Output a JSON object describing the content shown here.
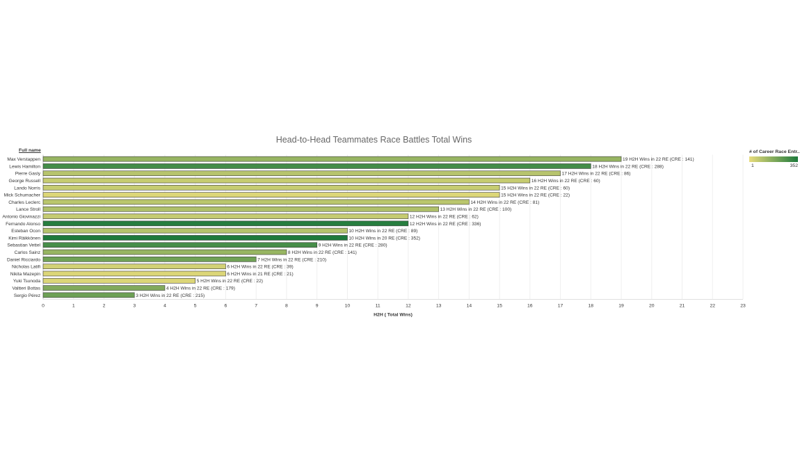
{
  "chart_data": {
    "type": "bar",
    "orientation": "horizontal",
    "title": "Head-to-Head Teammates Race Battles Total Wins",
    "row_header": "Full name",
    "xlabel": "H2H ( Total Wins)",
    "xlim": [
      0,
      23
    ],
    "xticks": [
      "0",
      "1",
      "2",
      "3",
      "4",
      "5",
      "6",
      "7",
      "8",
      "9",
      "10",
      "11",
      "12",
      "13",
      "14",
      "15",
      "16",
      "17",
      "18",
      "19",
      "20",
      "21",
      "22",
      "23"
    ],
    "color_legend": {
      "title": "# of Career Race Entr..",
      "min_label": "1",
      "max_label": "352",
      "min": 1,
      "max": 352,
      "min_color": "#e8dc7c",
      "max_color": "#1e7a3c"
    },
    "rows": [
      {
        "name": "Max Verstappen",
        "value": 19,
        "cre": 141,
        "label": "19 H2H Wins in 22 RE (CRE : 141)"
      },
      {
        "name": "Lewis Hamilton",
        "value": 18,
        "cre": 288,
        "label": "18 H2H Wins in 22 RE (CRE : 288)"
      },
      {
        "name": "Pierre Gasly",
        "value": 17,
        "cre": 86,
        "label": "17 H2H Wins in 22 RE (CRE : 86)"
      },
      {
        "name": "George Russell",
        "value": 16,
        "cre": 60,
        "label": "16 H2H Wins in 22 RE (CRE : 60)"
      },
      {
        "name": "Lando Norris",
        "value": 15,
        "cre": 60,
        "label": "15 H2H Wins in 22 RE (CRE : 60)"
      },
      {
        "name": "Mick Schumacher",
        "value": 15,
        "cre": 22,
        "label": "15 H2H Wins in 22 RE (CRE : 22)"
      },
      {
        "name": "Charles Leclerc",
        "value": 14,
        "cre": 81,
        "label": "14 H2H Wins in 22 RE (CRE : 81)"
      },
      {
        "name": "Lance Stroll",
        "value": 13,
        "cre": 100,
        "label": "13 H2H Wins in 22 RE (CRE : 100)"
      },
      {
        "name": "Antonio Giovinazzi",
        "value": 12,
        "cre": 62,
        "label": "12 H2H Wins in 22 RE (CRE : 62)"
      },
      {
        "name": "Fernando Alonso",
        "value": 12,
        "cre": 336,
        "label": "12 H2H Wins in 22 RE (CRE : 336)"
      },
      {
        "name": "Esteban Ocon",
        "value": 10,
        "cre": 89,
        "label": "10 H2H Wins in 22 RE (CRE : 89)"
      },
      {
        "name": "Kimi Räikkönen",
        "value": 10,
        "cre": 352,
        "label": "10 H2H Wins in 20 RE (CRE : 352)"
      },
      {
        "name": "Sebastian Vettel",
        "value": 9,
        "cre": 280,
        "label": "9 H2H Wins in 22 RE (CRE : 280)"
      },
      {
        "name": "Carlos Sainz",
        "value": 8,
        "cre": 141,
        "label": "8 H2H Wins in 22 RE (CRE : 141)"
      },
      {
        "name": "Daniel Ricciardo",
        "value": 7,
        "cre": 210,
        "label": "7 H2H Wins in 22 RE (CRE : 210)"
      },
      {
        "name": "Nicholas Latifi",
        "value": 6,
        "cre": 39,
        "label": "6 H2H Wins in 22 RE (CRE : 39)"
      },
      {
        "name": "Nikita Mazepin",
        "value": 6,
        "cre": 21,
        "label": "6 H2H Wins in 21 RE (CRE : 21)"
      },
      {
        "name": "Yuki Tsunoda",
        "value": 5,
        "cre": 22,
        "label": "5 H2H Wins in 22 RE (CRE : 22)"
      },
      {
        "name": "Valtteri Bottas",
        "value": 4,
        "cre": 179,
        "label": "4 H2H Wins in 22 RE (CRE : 179)"
      },
      {
        "name": "Sergio Pérez",
        "value": 3,
        "cre": 215,
        "label": "3 H2H Wins in 22 RE (CRE : 215)"
      }
    ]
  }
}
